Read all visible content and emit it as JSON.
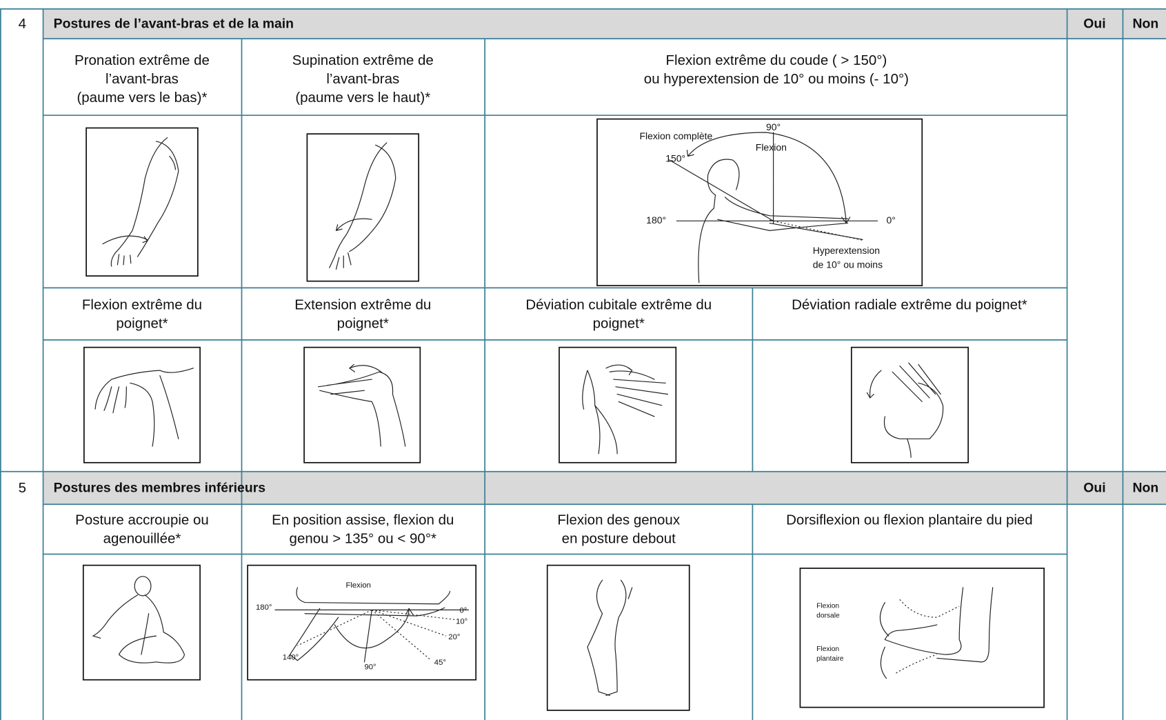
{
  "sections": [
    {
      "number": "4",
      "title": "Postures de l’avant-bras et de la main",
      "yes": "Oui",
      "no": "Non",
      "items": [
        {
          "label": [
            "Pronation extrême de",
            "l’avant-bras",
            "(paume vers le bas)*"
          ]
        },
        {
          "label": [
            "Supination extrême de",
            "l’avant-bras",
            "(paume vers le haut)*"
          ]
        },
        {
          "label": [
            "Flexion extrême du coude ( > 150°)",
            "ou hyperextension de 10° ou moins (- 10°)"
          ],
          "figure_text": [
            "Flexion complète",
            "90°",
            "Flexion",
            "150°",
            "180°",
            "0°",
            "Hyperextension",
            "de 10° ou moins"
          ]
        },
        {
          "label": [
            "Flexion extrême du",
            "poignet*"
          ]
        },
        {
          "label": [
            "Extension extrême du",
            "poignet*"
          ]
        },
        {
          "label": [
            "Déviation cubitale extrême du",
            "poignet*"
          ]
        },
        {
          "label": [
            "Déviation radiale extrême du poignet*"
          ]
        }
      ]
    },
    {
      "number": "5",
      "title": "Postures des membres inférieurs",
      "yes": "Oui",
      "no": "Non",
      "items": [
        {
          "label": [
            "Posture accroupie ou",
            "agenouillée*"
          ]
        },
        {
          "label": [
            "En position assise, flexion du",
            "genou > 135° ou < 90°*"
          ],
          "figure_text": [
            "Flexion",
            "180°",
            "0°",
            "10°",
            "20°",
            "45°",
            "140°",
            "90°"
          ]
        },
        {
          "label": [
            "Flexion des genoux",
            "en posture debout"
          ]
        },
        {
          "label": [
            "Dorsiflexion ou flexion plantaire du pied"
          ],
          "figure_text": [
            "Flexion",
            "dorsale",
            "Flexion",
            "plantaire"
          ]
        }
      ]
    }
  ]
}
